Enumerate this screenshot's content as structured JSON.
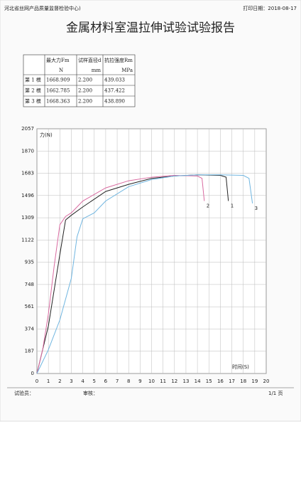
{
  "header": {
    "org": "河北省丝网产品质量监督检验中心)",
    "print_date": "打印日期：2018-08-17"
  },
  "title": "金属材料室温拉伸试验试验报告",
  "table": {
    "header": [
      "",
      "最大力Fm",
      "试样直径d",
      "抗拉强度Rm"
    ],
    "units": [
      "",
      "N",
      "mm",
      "MPa"
    ],
    "rows": [
      [
        "第 1 根",
        "1668.909",
        "2.200",
        "439.033"
      ],
      [
        "第 2 根",
        "1662.785",
        "2.200",
        "437.422"
      ],
      [
        "第 3 根",
        "1668.363",
        "2.200",
        "438.890"
      ]
    ]
  },
  "chart_data": {
    "type": "line",
    "y_label": "力(N)",
    "x_label": "时间(S)",
    "xlim": [
      0,
      20
    ],
    "xticks": [
      0,
      1,
      2,
      3,
      4,
      5,
      6,
      7,
      8,
      9,
      10,
      11,
      12,
      13,
      14,
      15,
      16,
      17,
      18,
      19,
      20
    ],
    "ylim": [
      0,
      2057
    ],
    "yticks": [
      0,
      187,
      374,
      561,
      748,
      935,
      1122,
      1309,
      1496,
      1683,
      1870,
      2057
    ],
    "grid": true,
    "series": [
      {
        "name": "1",
        "color": "#222222",
        "x": [
          0,
          1,
          2,
          2.5,
          3,
          4,
          6,
          8,
          10,
          12,
          14,
          16,
          16.5,
          16.7
        ],
        "values": [
          0,
          400,
          1000,
          1290,
          1330,
          1400,
          1530,
          1590,
          1640,
          1660,
          1670,
          1665,
          1650,
          1450
        ]
      },
      {
        "name": "2",
        "color": "#d96aa0",
        "x": [
          0,
          0.5,
          1,
          1.5,
          2,
          2.5,
          3,
          4,
          6,
          8,
          10,
          12,
          14,
          14.4,
          14.6
        ],
        "values": [
          0,
          200,
          500,
          900,
          1250,
          1320,
          1350,
          1450,
          1560,
          1620,
          1650,
          1665,
          1660,
          1640,
          1450
        ]
      },
      {
        "name": "3",
        "color": "#6fb5e0",
        "x": [
          0,
          1,
          2,
          3,
          3.5,
          4,
          5,
          6,
          8,
          10,
          12,
          14,
          16,
          18,
          18.5,
          18.8
        ],
        "values": [
          0,
          200,
          450,
          800,
          1150,
          1300,
          1350,
          1450,
          1570,
          1630,
          1660,
          1670,
          1670,
          1665,
          1640,
          1430
        ]
      }
    ]
  },
  "footer": {
    "tester": "试验员：",
    "reviewer": "审核：",
    "page": "1/1 页"
  }
}
